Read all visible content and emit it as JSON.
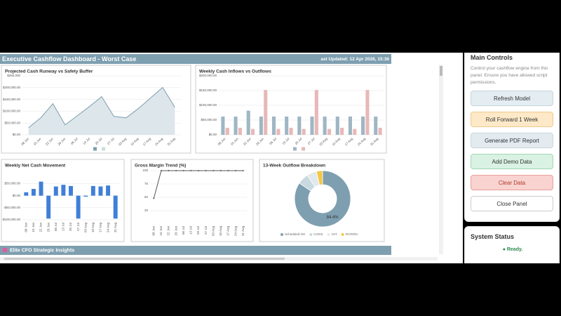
{
  "header": {
    "title": "Executive Cashflow Dashboard - Worst Case",
    "updated": "ast Updated: 12 Apr 2026, 15:36"
  },
  "chart_data": [
    {
      "type": "area",
      "title": "Projected Cash Runway vs Safety Buffer",
      "categories": [
        "08 Jun",
        "15 Jun",
        "22 Jun",
        "29 Jun",
        "06 Jul",
        "13 Jul",
        "20 Jul",
        "27 Jul",
        "03 Aug",
        "10 Aug",
        "17 Aug",
        "24 Aug",
        "31 Aug"
      ],
      "values": [
        30000,
        72000,
        132000,
        42000,
        81000,
        120000,
        162000,
        78000,
        72000,
        111000,
        156000,
        201000,
        117000
      ],
      "color": "#7e9fb0",
      "fill": "#dde6ea",
      "legend_colors": [
        "#7e9fb0",
        "#c9dfd9"
      ],
      "ylim": [
        0,
        250000
      ],
      "yticks": [
        {
          "value": 0,
          "label": "$0.00"
        },
        {
          "value": 50000,
          "label": "$50,000.00"
        },
        {
          "value": 100000,
          "label": "$100,000.00"
        },
        {
          "value": 150000,
          "label": "$150,000.00"
        },
        {
          "value": 200000,
          "label": "$200,000.00"
        },
        {
          "value": 250000,
          "label": "$250,000"
        }
      ],
      "grid": true
    },
    {
      "type": "bar",
      "title": "Weekly Cash Inflows vs Outflows",
      "categories": [
        "08 Jun",
        "15 Jun",
        "22 Jun",
        "29 Jun",
        "06 Jul",
        "13 Jul",
        "20 Jul",
        "27 Jul",
        "03 Aug",
        "10 Aug",
        "17 Aug",
        "24 Aug",
        "31 Aug"
      ],
      "series": [
        {
          "color": "#9fb6c4",
          "values": [
            62000,
            62000,
            82000,
            62000,
            62000,
            62000,
            62000,
            62000,
            62000,
            62000,
            62000,
            62000,
            62000
          ]
        },
        {
          "color": "#e8b8b8",
          "values": [
            24000,
            24000,
            20000,
            152000,
            20000,
            24000,
            20000,
            152000,
            20000,
            24000,
            20000,
            152000,
            24000
          ]
        }
      ],
      "ylim": [
        0,
        200000
      ],
      "yticks": [
        {
          "value": 0,
          "label": "$0.00"
        },
        {
          "value": 50000,
          "label": "$50,000.00"
        },
        {
          "value": 100000,
          "label": "$100,000.00"
        },
        {
          "value": 150000,
          "label": "$150,000.00"
        },
        {
          "value": 200000,
          "label": "$200,000.00"
        }
      ],
      "grid": true
    },
    {
      "type": "bar",
      "title": "Weekly Net Cash Movement",
      "categories": [
        "08 Jun",
        "15 Jun",
        "22 Jun",
        "29 Jun",
        "06 Jul",
        "13 Jul",
        "20 Jul",
        "27 Jul",
        "03 Aug",
        "10 Aug",
        "17 Aug",
        "24 Aug",
        "31 Aug"
      ],
      "values": [
        14000,
        28000,
        58000,
        -95000,
        38000,
        45000,
        40000,
        -95000,
        -4000,
        40000,
        38000,
        42000,
        -95000
      ],
      "color": "#3f7fd9",
      "ylim": [
        -100000,
        60000
      ],
      "yticks": [
        {
          "value": -100000,
          "label": "-$100,000.00"
        },
        {
          "value": -50000,
          "label": "-$50,000.00"
        },
        {
          "value": 0,
          "label": "$0.00"
        },
        {
          "value": 50000,
          "label": "$50,000.00"
        }
      ],
      "grid": true
    },
    {
      "type": "line",
      "title": "Gross Margin Trend (%)",
      "categories": [
        "08 Jun",
        "15 Jun",
        "22 Jun",
        "29 Jun",
        "06 Jul",
        "13 Jul",
        "20 Jul",
        "27 Jul",
        "03 Aug",
        "10 Aug",
        "17 Aug",
        "24 Aug",
        "31 Aug"
      ],
      "values": [
        48,
        100,
        100,
        100,
        100,
        100,
        100,
        100,
        100,
        100,
        100,
        100,
        100
      ],
      "color": "#555555",
      "ylim": [
        0,
        100
      ],
      "yticks": [
        25,
        50,
        75,
        100
      ],
      "grid": true
    },
    {
      "type": "pie",
      "title": "13-Week Outflow Breakdown",
      "categories": [
        "Scheduled OH",
        "COGS",
        "VAT",
        "PAYE/NI"
      ],
      "values": [
        84.4,
        6.5,
        5.6,
        3.5
      ],
      "value_labels": [
        "84.4%",
        null,
        null,
        null
      ],
      "colors": [
        "#7e9fb0",
        "#c9d9e0",
        "#e2e9ec",
        "#f3c744"
      ],
      "donut": true
    }
  ],
  "insights_banner": "Elite CFO Strategic Insights",
  "controls": {
    "title": "Main Controls",
    "description": "Control your cashflow engine from this panel. Ensure you have allowed script permissions.",
    "buttons": [
      "Refresh Model",
      "Roll Forward 1 Week",
      "Generate PDF Report",
      "Add Demo Data",
      "Clear Data",
      "Close Panel"
    ]
  },
  "status": {
    "title": "System Status",
    "text": "● Ready."
  }
}
